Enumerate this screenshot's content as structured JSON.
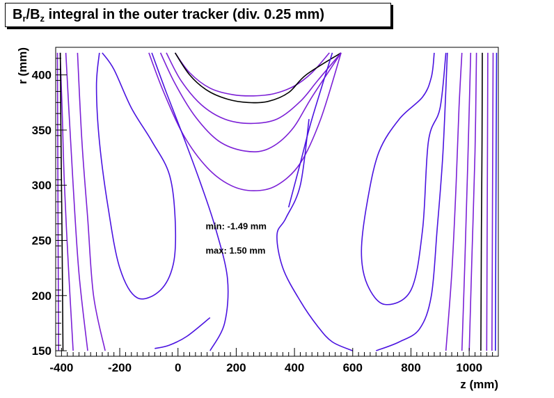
{
  "chart_data": {
    "type": "contour",
    "title_main": "B",
    "title_sub_r": "r",
    "title_slash": "/B",
    "title_sub_z": "z",
    "title_rest": " integral in the outer tracker (div. 0.25 mm)",
    "xlabel": "z (mm)",
    "ylabel": "r (mm)",
    "xlim": [
      -420,
      1100
    ],
    "ylim": [
      145,
      425
    ],
    "xticks": [
      {
        "v": -400,
        "label": "-400"
      },
      {
        "v": -200,
        "label": "-200"
      },
      {
        "v": 0,
        "label": "0"
      },
      {
        "v": 200,
        "label": "200"
      },
      {
        "v": 400,
        "label": "400"
      },
      {
        "v": 600,
        "label": "600"
      },
      {
        "v": 800,
        "label": "800"
      },
      {
        "v": 1000,
        "label": "1000"
      }
    ],
    "yticks": [
      {
        "v": 150,
        "label": "150"
      },
      {
        "v": 200,
        "label": "200"
      },
      {
        "v": 250,
        "label": "250"
      },
      {
        "v": 300,
        "label": "300"
      },
      {
        "v": 350,
        "label": "350"
      },
      {
        "v": 400,
        "label": "400"
      }
    ],
    "annotations": [
      {
        "text": "min: -1.49 mm",
        "x": 95,
        "y": 260
      },
      {
        "text": "max: 1.50 mm",
        "x": 95,
        "y": 238
      }
    ],
    "contour_colors": [
      "#7b1fd6",
      "#4a12e0",
      "#000000",
      "#2a14e8"
    ],
    "contours": [
      {
        "color": "#7b1fd6",
        "points": [
          [
            -10,
            420
          ],
          [
            40,
            402
          ],
          [
            110,
            388
          ],
          [
            190,
            382
          ],
          [
            260,
            381
          ],
          [
            330,
            383
          ],
          [
            400,
            390
          ],
          [
            460,
            402
          ],
          [
            520,
            420
          ]
        ]
      },
      {
        "color": "#000000",
        "points": [
          [
            -10,
            420
          ],
          [
            40,
            400
          ],
          [
            100,
            386
          ],
          [
            170,
            378
          ],
          [
            240,
            375
          ],
          [
            310,
            376
          ],
          [
            380,
            384
          ],
          [
            440,
            400
          ],
          [
            560,
            420
          ]
        ]
      },
      {
        "color": "#7b1fd6",
        "points": [
          [
            -40,
            420
          ],
          [
            10,
            395
          ],
          [
            80,
            373
          ],
          [
            160,
            360
          ],
          [
            250,
            356
          ],
          [
            340,
            360
          ],
          [
            420,
            376
          ],
          [
            480,
            395
          ],
          [
            560,
            420
          ]
        ]
      },
      {
        "color": "#7b1fd6",
        "points": [
          [
            -60,
            420
          ],
          [
            -10,
            392
          ],
          [
            60,
            362
          ],
          [
            140,
            340
          ],
          [
            230,
            331
          ],
          [
            310,
            333
          ],
          [
            390,
            350
          ],
          [
            460,
            380
          ],
          [
            560,
            420
          ]
        ]
      },
      {
        "color": "#7b1fd6",
        "points": [
          [
            -100,
            420
          ],
          [
            -50,
            385
          ],
          [
            20,
            345
          ],
          [
            100,
            316
          ],
          [
            180,
            300
          ],
          [
            260,
            295
          ],
          [
            340,
            300
          ],
          [
            420,
            320
          ],
          [
            490,
            360
          ],
          [
            560,
            420
          ]
        ]
      },
      {
        "color": "#4a12e0",
        "points": [
          [
            -90,
            420
          ],
          [
            -40,
            384
          ],
          [
            20,
            343
          ],
          [
            80,
            300
          ],
          [
            130,
            260
          ],
          [
            170,
            215
          ],
          [
            160,
            175
          ],
          [
            110,
            150
          ]
        ]
      },
      {
        "color": "#4a12e0",
        "points": [
          [
            -260,
            420
          ],
          [
            -220,
            405
          ],
          [
            -160,
            370
          ],
          [
            -90,
            340
          ],
          [
            -30,
            310
          ],
          [
            -10,
            270
          ],
          [
            -15,
            230
          ],
          [
            -60,
            205
          ],
          [
            -140,
            198
          ],
          [
            -200,
            225
          ],
          [
            -240,
            280
          ],
          [
            -270,
            340
          ],
          [
            -280,
            390
          ],
          [
            -270,
            420
          ]
        ]
      },
      {
        "color": "#4a12e0",
        "points": [
          [
            -80,
            152
          ],
          [
            -30,
            155
          ],
          [
            30,
            163
          ],
          [
            110,
            180
          ]
        ]
      },
      {
        "color": "#4a12e0",
        "points": [
          [
            880,
            420
          ],
          [
            870,
            398
          ],
          [
            840,
            380
          ],
          [
            760,
            360
          ],
          [
            690,
            330
          ],
          [
            650,
            285
          ],
          [
            630,
            240
          ],
          [
            650,
            210
          ],
          [
            710,
            192
          ],
          [
            800,
            205
          ],
          [
            840,
            260
          ],
          [
            860,
            340
          ],
          [
            900,
            370
          ],
          [
            920,
            420
          ]
        ]
      },
      {
        "color": "#4a12e0",
        "points": [
          [
            380,
            280
          ],
          [
            420,
            320
          ],
          [
            460,
            360
          ],
          [
            530,
            420
          ]
        ]
      },
      {
        "color": "#4a12e0",
        "points": [
          [
            450,
            360
          ],
          [
            420,
            300
          ],
          [
            370,
            270
          ],
          [
            340,
            255
          ],
          [
            360,
            225
          ],
          [
            420,
            195
          ],
          [
            480,
            172
          ],
          [
            530,
            158
          ],
          [
            600,
            150
          ]
        ]
      },
      {
        "color": "#4a12e0",
        "points": [
          [
            680,
            150
          ],
          [
            760,
            158
          ],
          [
            830,
            170
          ],
          [
            870,
            200
          ],
          [
            890,
            260
          ],
          [
            910,
            330
          ],
          [
            925,
            420
          ]
        ]
      },
      {
        "color": "#7b1fd6",
        "points": [
          [
            -250,
            150
          ],
          [
            -290,
            200
          ],
          [
            -310,
            270
          ],
          [
            -330,
            340
          ],
          [
            -345,
            420
          ]
        ]
      },
      {
        "color": "#7b1fd6",
        "points": [
          [
            -310,
            150
          ],
          [
            -340,
            220
          ],
          [
            -360,
            300
          ],
          [
            -375,
            370
          ],
          [
            -385,
            420
          ]
        ]
      },
      {
        "color": "#7b1fd6",
        "points": [
          [
            -360,
            150
          ],
          [
            -375,
            220
          ],
          [
            -390,
            300
          ],
          [
            -398,
            370
          ],
          [
            -405,
            420
          ]
        ]
      },
      {
        "color": "#000000",
        "points": [
          [
            -395,
            150
          ],
          [
            -398,
            250
          ],
          [
            -402,
            350
          ],
          [
            -404,
            420
          ]
        ]
      },
      {
        "color": "#7b1fd6",
        "points": [
          [
            -410,
            150
          ],
          [
            -412,
            280
          ],
          [
            -414,
            420
          ]
        ]
      },
      {
        "color": "#7b1fd6",
        "points": [
          [
            920,
            150
          ],
          [
            940,
            220
          ],
          [
            955,
            300
          ],
          [
            965,
            370
          ],
          [
            975,
            420
          ]
        ]
      },
      {
        "color": "#7b1fd6",
        "points": [
          [
            975,
            150
          ],
          [
            985,
            230
          ],
          [
            995,
            320
          ],
          [
            1005,
            420
          ]
        ]
      },
      {
        "color": "#7b1fd6",
        "points": [
          [
            1000,
            150
          ],
          [
            1010,
            240
          ],
          [
            1020,
            330
          ],
          [
            1025,
            420
          ]
        ]
      },
      {
        "color": "#000000",
        "points": [
          [
            1040,
            150
          ],
          [
            1042,
            260
          ],
          [
            1044,
            340
          ],
          [
            1045,
            420
          ]
        ]
      },
      {
        "color": "#7b1fd6",
        "points": [
          [
            1060,
            150
          ],
          [
            1062,
            280
          ],
          [
            1064,
            420
          ]
        ]
      },
      {
        "color": "#7b1fd6",
        "points": [
          [
            1078,
            150
          ],
          [
            1080,
            280
          ],
          [
            1082,
            420
          ]
        ]
      },
      {
        "color": "#2a14e8",
        "points": [
          [
            1090,
            150
          ],
          [
            1092,
            300
          ],
          [
            1094,
            420
          ]
        ]
      }
    ]
  }
}
